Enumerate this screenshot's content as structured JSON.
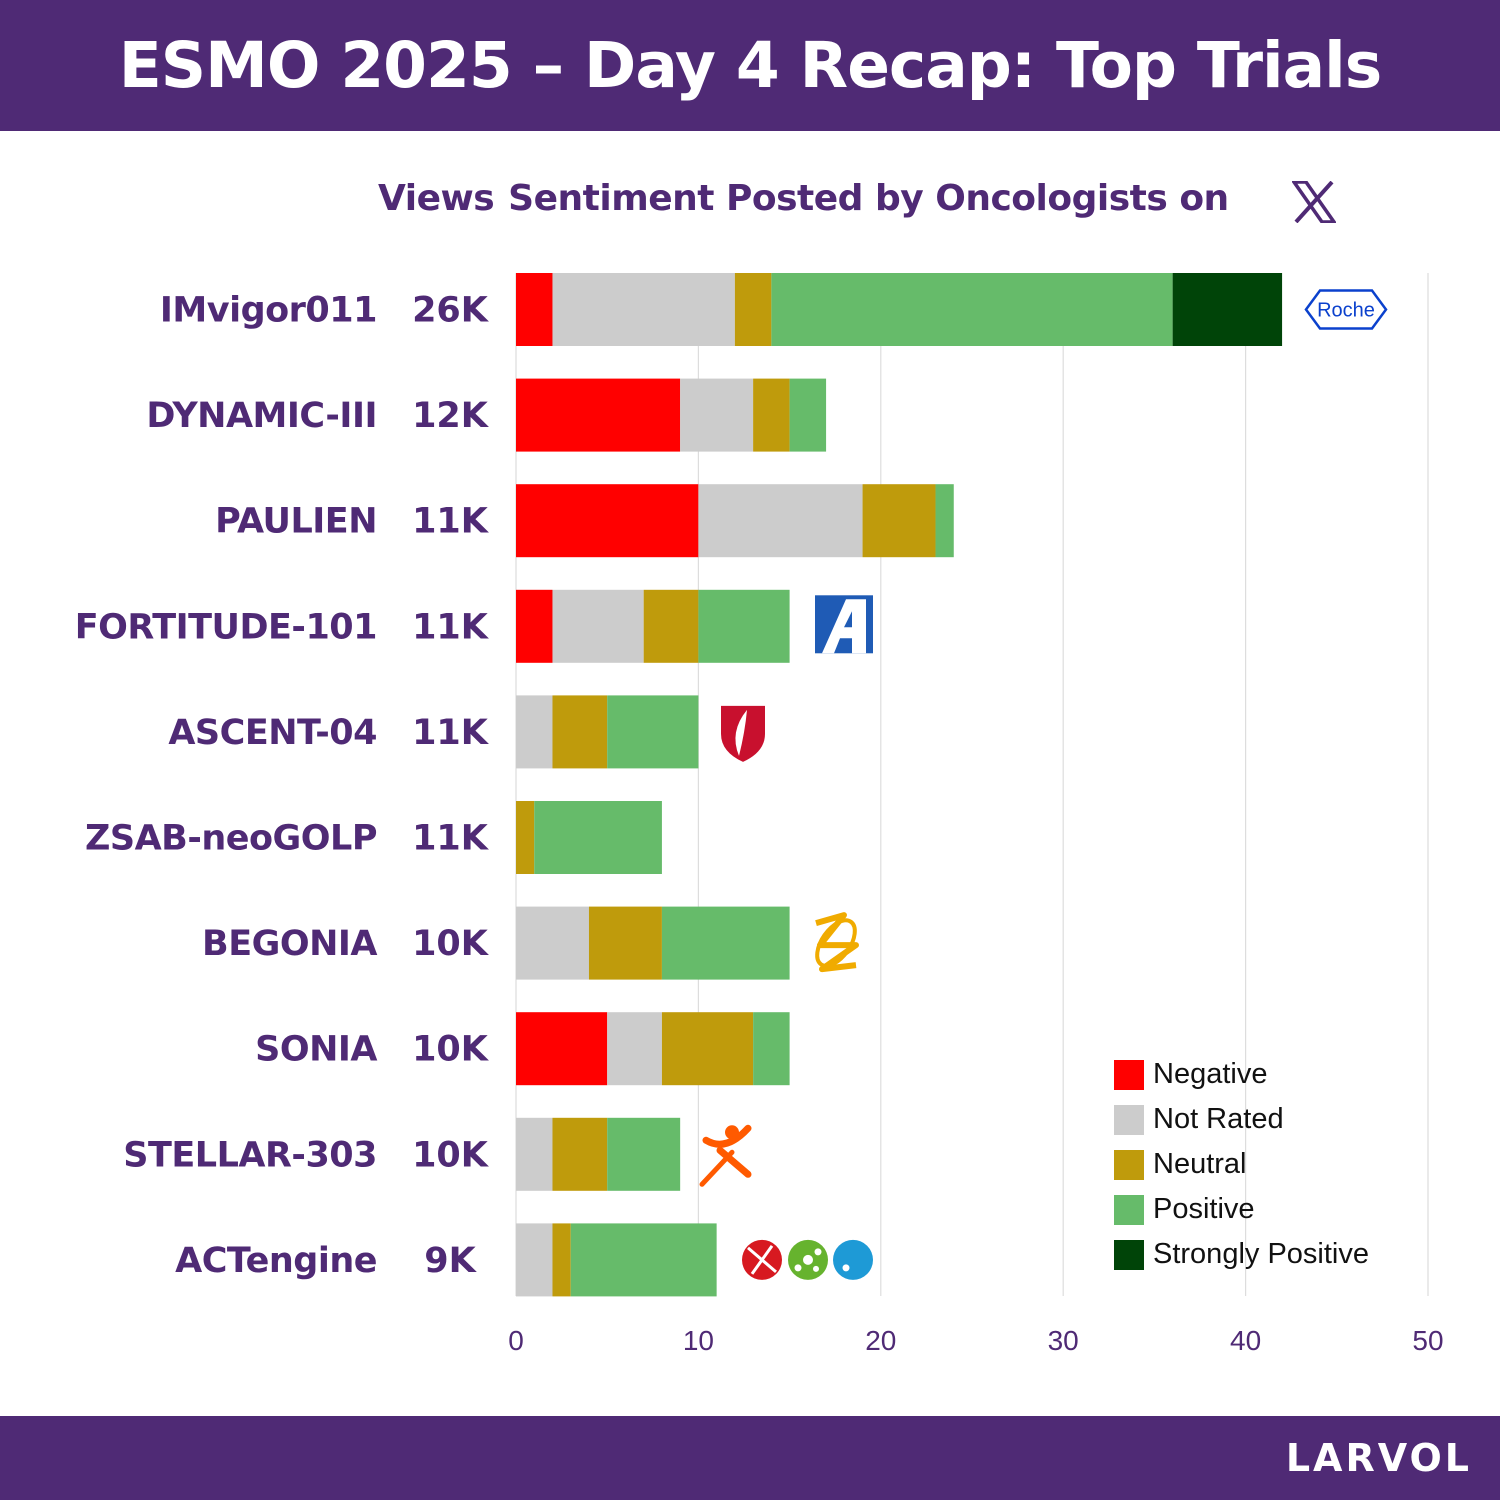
{
  "header": {
    "title": "ESMO 2025 – Day 4 Recap: Top Trials"
  },
  "subtitle": {
    "views_label": "Views",
    "sentiment_label": "Sentiment Posted by Oncologists on"
  },
  "footer": {
    "brand": "LARVOL"
  },
  "colors": {
    "header_bg": "#4f2a75",
    "label_text": "#4f2a75",
    "Negative": "#ff0000",
    "Not Rated": "#cccccc",
    "Neutral": "#bf9b0c",
    "Positive": "#66bb6a",
    "Strongly Positive": "#004408"
  },
  "chart_data": {
    "type": "bar",
    "orientation": "horizontal",
    "stacked": true,
    "categories": [
      "IMvigor011",
      "DYNAMIC-III",
      "PAULIEN",
      "FORTITUDE-101",
      "ASCENT-04",
      "ZSAB-neoGOLP",
      "BEGONIA",
      "SONIA",
      "STELLAR-303",
      "ACTengine"
    ],
    "views": [
      "26K",
      "12K",
      "11K",
      "11K",
      "11K",
      "11K",
      "10K",
      "10K",
      "10K",
      "9K"
    ],
    "series": [
      {
        "name": "Negative",
        "values": [
          2,
          9,
          10,
          2,
          0,
          0,
          0,
          5,
          0,
          0
        ]
      },
      {
        "name": "Not Rated",
        "values": [
          10,
          4,
          9,
          5,
          2,
          0,
          4,
          3,
          2,
          2
        ]
      },
      {
        "name": "Neutral",
        "values": [
          2,
          2,
          4,
          3,
          3,
          1,
          4,
          5,
          3,
          1
        ]
      },
      {
        "name": "Positive",
        "values": [
          22,
          2,
          1,
          5,
          5,
          7,
          7,
          2,
          4,
          8
        ]
      },
      {
        "name": "Strongly Positive",
        "values": [
          6,
          0,
          0,
          0,
          0,
          0,
          0,
          0,
          0,
          0
        ]
      }
    ],
    "xlim": [
      0,
      50
    ],
    "xticks": [
      "0",
      "10",
      "20",
      "30",
      "40",
      "50"
    ],
    "grid": true,
    "legend_position": "bottom-right",
    "logos": [
      {
        "row": 0,
        "icon": "roche-logo",
        "text": "Roche"
      },
      {
        "row": 3,
        "icon": "a-logo"
      },
      {
        "row": 4,
        "icon": "gilead-shield-logo"
      },
      {
        "row": 6,
        "icon": "astrazeneca-logo"
      },
      {
        "row": 8,
        "icon": "exelixis-logo"
      },
      {
        "row": 9,
        "icon": "actengine-partner-logos"
      }
    ]
  }
}
